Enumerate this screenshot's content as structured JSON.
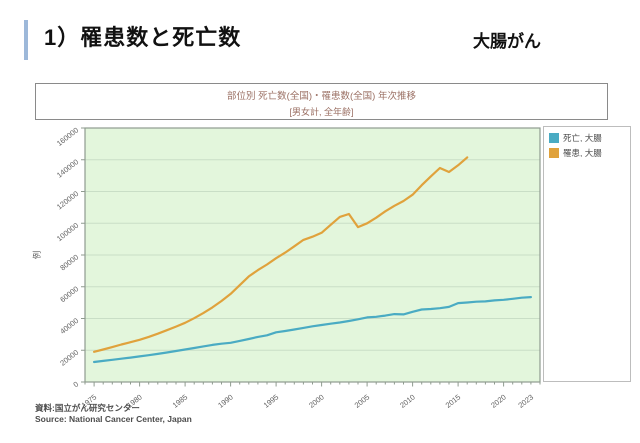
{
  "page": {
    "title": "1）罹患数と死亡数",
    "category": "大腸がん"
  },
  "source": {
    "line1": "資料:国立がん研究センター",
    "line2": "Source: National Cancer Center, Japan"
  },
  "colors": {
    "accent_bar": "#9db8d9",
    "plot_bg": "#e3f6dc",
    "grid": "#c9dec6",
    "axis": "#8f9b8f",
    "tick_text": "#5f5f5f",
    "death_series": "#4aabc3",
    "incidence_series": "#e0a23c",
    "chart_title_text": "#9b7064"
  },
  "chart_data": {
    "type": "line",
    "title": "部位別 死亡数(全国)・罹患数(全国) 年次推移",
    "subtitle": "[男女計, 全年齢]",
    "ylabel": "例",
    "xlim": [
      1974,
      2024
    ],
    "ylim": [
      0,
      160000
    ],
    "y_ticks": [
      0,
      20000,
      40000,
      60000,
      80000,
      100000,
      120000,
      140000,
      160000
    ],
    "x_tick_labels": [
      1975,
      1980,
      1985,
      1990,
      1995,
      2000,
      2005,
      2010,
      2015,
      2020,
      2023
    ],
    "grid": true,
    "legend_position": "right",
    "series": [
      {
        "name": "死亡, 大腸",
        "color": "#4aabc3",
        "points": [
          [
            1975,
            12600
          ],
          [
            1976,
            13300
          ],
          [
            1977,
            14000
          ],
          [
            1978,
            14700
          ],
          [
            1979,
            15400
          ],
          [
            1980,
            16100
          ],
          [
            1981,
            16900
          ],
          [
            1982,
            17700
          ],
          [
            1983,
            18600
          ],
          [
            1984,
            19500
          ],
          [
            1985,
            20500
          ],
          [
            1986,
            21400
          ],
          [
            1987,
            22400
          ],
          [
            1988,
            23400
          ],
          [
            1989,
            24100
          ],
          [
            1990,
            24700
          ],
          [
            1991,
            25900
          ],
          [
            1992,
            27100
          ],
          [
            1993,
            28400
          ],
          [
            1994,
            29400
          ],
          [
            1995,
            31300
          ],
          [
            1996,
            32100
          ],
          [
            1997,
            33100
          ],
          [
            1998,
            34100
          ],
          [
            1999,
            35100
          ],
          [
            2000,
            35900
          ],
          [
            2001,
            36700
          ],
          [
            2002,
            37500
          ],
          [
            2003,
            38400
          ],
          [
            2004,
            39500
          ],
          [
            2005,
            40700
          ],
          [
            2006,
            41100
          ],
          [
            2007,
            41800
          ],
          [
            2008,
            42800
          ],
          [
            2009,
            42600
          ],
          [
            2010,
            44200
          ],
          [
            2011,
            45700
          ],
          [
            2012,
            46000
          ],
          [
            2013,
            46500
          ],
          [
            2014,
            47300
          ],
          [
            2015,
            49700
          ],
          [
            2016,
            50100
          ],
          [
            2017,
            50600
          ],
          [
            2018,
            50800
          ],
          [
            2019,
            51400
          ],
          [
            2020,
            51800
          ],
          [
            2021,
            52400
          ],
          [
            2022,
            53100
          ],
          [
            2023,
            53500
          ]
        ]
      },
      {
        "name": "罹患, 大腸",
        "color": "#e0a23c",
        "points": [
          [
            1975,
            19000
          ],
          [
            1976,
            20500
          ],
          [
            1977,
            22000
          ],
          [
            1978,
            23600
          ],
          [
            1979,
            25100
          ],
          [
            1980,
            26600
          ],
          [
            1981,
            28400
          ],
          [
            1982,
            30400
          ],
          [
            1983,
            32600
          ],
          [
            1984,
            34900
          ],
          [
            1985,
            37300
          ],
          [
            1986,
            40200
          ],
          [
            1987,
            43400
          ],
          [
            1988,
            47000
          ],
          [
            1989,
            51000
          ],
          [
            1990,
            55500
          ],
          [
            1991,
            61000
          ],
          [
            1992,
            66500
          ],
          [
            1993,
            70500
          ],
          [
            1994,
            74000
          ],
          [
            1995,
            78000
          ],
          [
            1996,
            81500
          ],
          [
            1997,
            85500
          ],
          [
            1998,
            89500
          ],
          [
            1999,
            91500
          ],
          [
            2000,
            94000
          ],
          [
            2001,
            99000
          ],
          [
            2002,
            104000
          ],
          [
            2003,
            105800
          ],
          [
            2004,
            97600
          ],
          [
            2005,
            100000
          ],
          [
            2006,
            103500
          ],
          [
            2007,
            107500
          ],
          [
            2008,
            111000
          ],
          [
            2009,
            114000
          ],
          [
            2010,
            118000
          ],
          [
            2011,
            124000
          ],
          [
            2012,
            129500
          ],
          [
            2013,
            134800
          ],
          [
            2014,
            132300
          ],
          [
            2015,
            136500
          ],
          [
            2016,
            141500
          ]
        ]
      }
    ]
  }
}
